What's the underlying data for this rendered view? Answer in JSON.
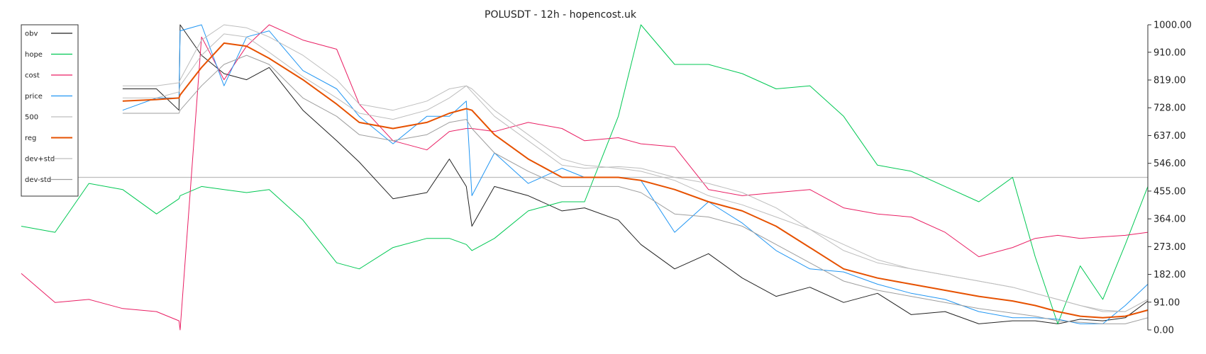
{
  "chart_data": {
    "type": "line",
    "title": "POLUSDT - 12h - hopencost.uk",
    "xlabel": "",
    "ylabel": "",
    "ylim": [
      0,
      1000
    ],
    "yticks": [
      "0.00",
      "91.00",
      "182.00",
      "273.00",
      "364.00",
      "455.00",
      "546.00",
      "637.00",
      "728.00",
      "819.00",
      "910.00",
      "1000.00"
    ],
    "grid": false,
    "y_axis_position": "right",
    "legend_position": "top-left",
    "reference_line": 500,
    "x": [
      0,
      0.03,
      0.06,
      0.09,
      0.12,
      0.14,
      0.141,
      0.16,
      0.18,
      0.2,
      0.22,
      0.25,
      0.28,
      0.3,
      0.33,
      0.36,
      0.38,
      0.395,
      0.4,
      0.42,
      0.45,
      0.48,
      0.5,
      0.53,
      0.55,
      0.58,
      0.61,
      0.64,
      0.67,
      0.7,
      0.73,
      0.76,
      0.79,
      0.82,
      0.85,
      0.88,
      0.9,
      0.92,
      0.94,
      0.96,
      0.98,
      1.0
    ],
    "series": [
      {
        "name": "obv",
        "color": "#222222",
        "stroke_width": 1,
        "values": [
          null,
          null,
          null,
          790,
          790,
          720,
          1000,
          900,
          840,
          820,
          860,
          720,
          620,
          550,
          430,
          450,
          560,
          470,
          340,
          470,
          440,
          390,
          400,
          360,
          280,
          200,
          250,
          170,
          110,
          140,
          90,
          120,
          50,
          60,
          20,
          30,
          30,
          20,
          35,
          30,
          40,
          95
        ]
      },
      {
        "name": "hope",
        "color": "#00c853",
        "stroke_width": 1,
        "values": [
          340,
          320,
          480,
          460,
          380,
          430,
          440,
          470,
          460,
          450,
          460,
          360,
          220,
          200,
          270,
          300,
          300,
          280,
          260,
          300,
          390,
          420,
          420,
          700,
          1000,
          870,
          870,
          840,
          790,
          800,
          700,
          540,
          520,
          470,
          420,
          500,
          240,
          20,
          210,
          100,
          280,
          470
        ]
      },
      {
        "name": "cost",
        "color": "#e91e63",
        "stroke_width": 1,
        "values": [
          185,
          90,
          100,
          70,
          60,
          30,
          0,
          960,
          820,
          930,
          1000,
          950,
          920,
          740,
          620,
          590,
          650,
          660,
          660,
          650,
          680,
          660,
          620,
          630,
          610,
          600,
          460,
          440,
          450,
          460,
          400,
          380,
          370,
          320,
          240,
          270,
          300,
          310,
          300,
          305,
          310,
          320
        ]
      },
      {
        "name": "price",
        "color": "#2196f3",
        "stroke_width": 1,
        "values": [
          null,
          null,
          null,
          720,
          760,
          760,
          980,
          1000,
          800,
          960,
          980,
          850,
          790,
          700,
          610,
          700,
          700,
          750,
          440,
          580,
          480,
          530,
          500,
          500,
          490,
          320,
          420,
          350,
          260,
          200,
          190,
          150,
          120,
          100,
          60,
          40,
          40,
          35,
          20,
          20,
          80,
          150
        ]
      },
      {
        "name": "500",
        "color": "#bdbdbd",
        "stroke_width": 1,
        "values": [
          null,
          null,
          null,
          760,
          760,
          780,
          800,
          900,
          970,
          960,
          910,
          830,
          760,
          710,
          690,
          720,
          760,
          800,
          790,
          720,
          640,
          560,
          540,
          530,
          520,
          490,
          440,
          410,
          370,
          330,
          280,
          230,
          200,
          180,
          160,
          140,
          120,
          100,
          80,
          65,
          60,
          100
        ]
      },
      {
        "name": "reg",
        "color": "#e65100",
        "stroke_width": 2,
        "values": [
          null,
          null,
          null,
          750,
          755,
          760,
          770,
          860,
          940,
          930,
          890,
          820,
          740,
          680,
          660,
          680,
          710,
          725,
          720,
          640,
          560,
          500,
          500,
          500,
          490,
          460,
          420,
          390,
          340,
          270,
          200,
          170,
          150,
          130,
          110,
          95,
          80,
          60,
          45,
          40,
          45,
          65
        ]
      },
      {
        "name": "dev+std",
        "color": "#bdbdbd",
        "stroke_width": 1,
        "values": [
          null,
          null,
          null,
          800,
          800,
          810,
          820,
          950,
          1000,
          990,
          960,
          900,
          820,
          740,
          720,
          750,
          790,
          800,
          780,
          700,
          620,
          540,
          530,
          535,
          530,
          500,
          480,
          450,
          400,
          330,
          260,
          220,
          200,
          180,
          160,
          140,
          120,
          100,
          80,
          60,
          60,
          100
        ]
      },
      {
        "name": "dev-std",
        "color": "#9e9e9e",
        "stroke_width": 1,
        "values": [
          null,
          null,
          null,
          710,
          710,
          710,
          720,
          800,
          870,
          900,
          870,
          760,
          700,
          640,
          620,
          640,
          680,
          690,
          660,
          580,
          520,
          470,
          470,
          470,
          450,
          380,
          370,
          340,
          280,
          220,
          160,
          130,
          110,
          90,
          70,
          55,
          45,
          30,
          25,
          20,
          20,
          40
        ]
      }
    ]
  }
}
